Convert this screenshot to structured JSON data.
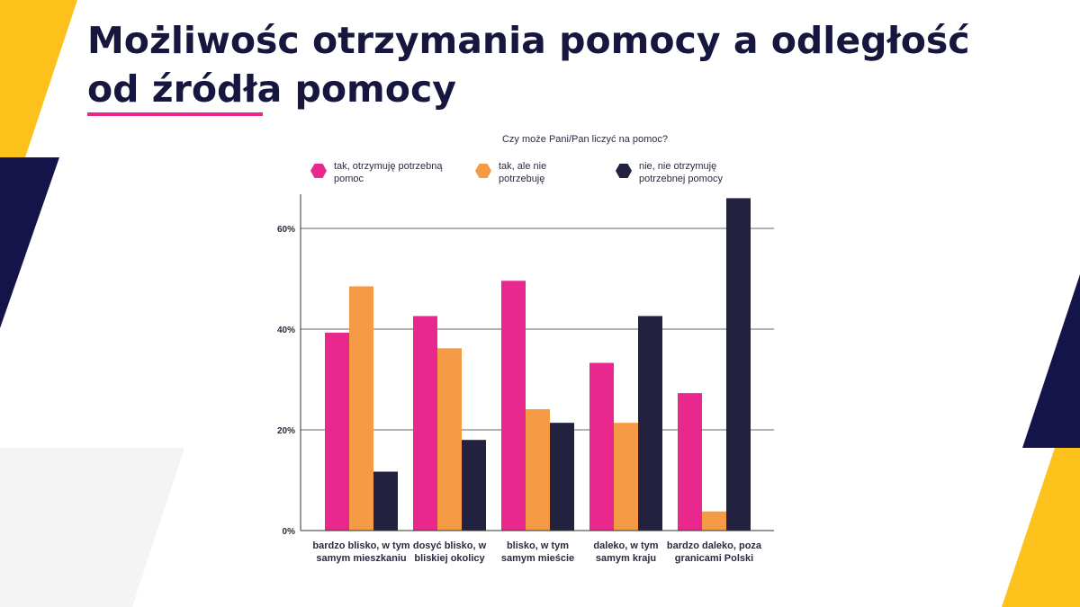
{
  "title": "Możliwośc otrzymania pomocy a odległość od źródła pomocy",
  "chart_data": {
    "type": "bar",
    "title": "Czy może Pani/Pan liczyć na pomoc?",
    "xlabel": "",
    "ylabel": "",
    "ylim": [
      0,
      66
    ],
    "yticks": [
      "0%",
      "20%",
      "40%",
      "60%"
    ],
    "ytick_values": [
      0,
      20,
      40,
      60
    ],
    "grid": true,
    "legend_position": "top",
    "categories": [
      "bardzo blisko, w tym samym mieszkaniu",
      "dosyć blisko, w bliskiej okolicy",
      "blisko, w tym samym mieście",
      "daleko, w tym samym kraju",
      "bardzo daleko, poza granicami Polski"
    ],
    "series": [
      {
        "name": "tak, otrzymuję potrzebną pomoc",
        "color": "#e8288c",
        "values": [
          39.3,
          42.6,
          49.6,
          33.3,
          27.3
        ]
      },
      {
        "name": "tak, ale nie potrzebuję",
        "color": "#f59a45",
        "values": [
          48.5,
          36.2,
          24.1,
          21.4,
          3.8
        ]
      },
      {
        "name": "nie, nie otrzymuję potrzebnej pomocy",
        "color": "#22213f",
        "values": [
          11.7,
          18.0,
          21.4,
          42.6,
          66.0
        ]
      }
    ]
  },
  "legend_icon": "hexagon",
  "colors": {
    "navy": "#14134a",
    "yellow": "#fcc21b",
    "pink": "#e8288c",
    "light_gray": "#f4f4f4"
  }
}
